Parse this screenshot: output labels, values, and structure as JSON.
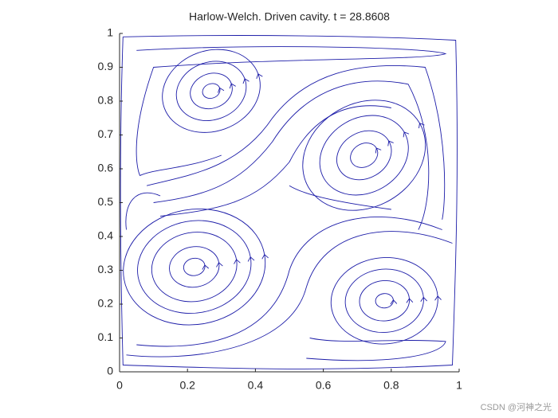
{
  "chart_data": {
    "type": "streamline",
    "title": "Harlow-Welch. Driven cavity. t = 28.8608",
    "xlim": [
      0,
      1
    ],
    "ylim": [
      0,
      1
    ],
    "xticks": [
      0,
      0.2,
      0.4,
      0.6,
      0.8,
      1
    ],
    "yticks": [
      0,
      0.1,
      0.2,
      0.3,
      0.4,
      0.5,
      0.6,
      0.7,
      0.8,
      0.9,
      1
    ],
    "color": "#1c1ca8"
  },
  "watermark": "CSDN @河神之光"
}
